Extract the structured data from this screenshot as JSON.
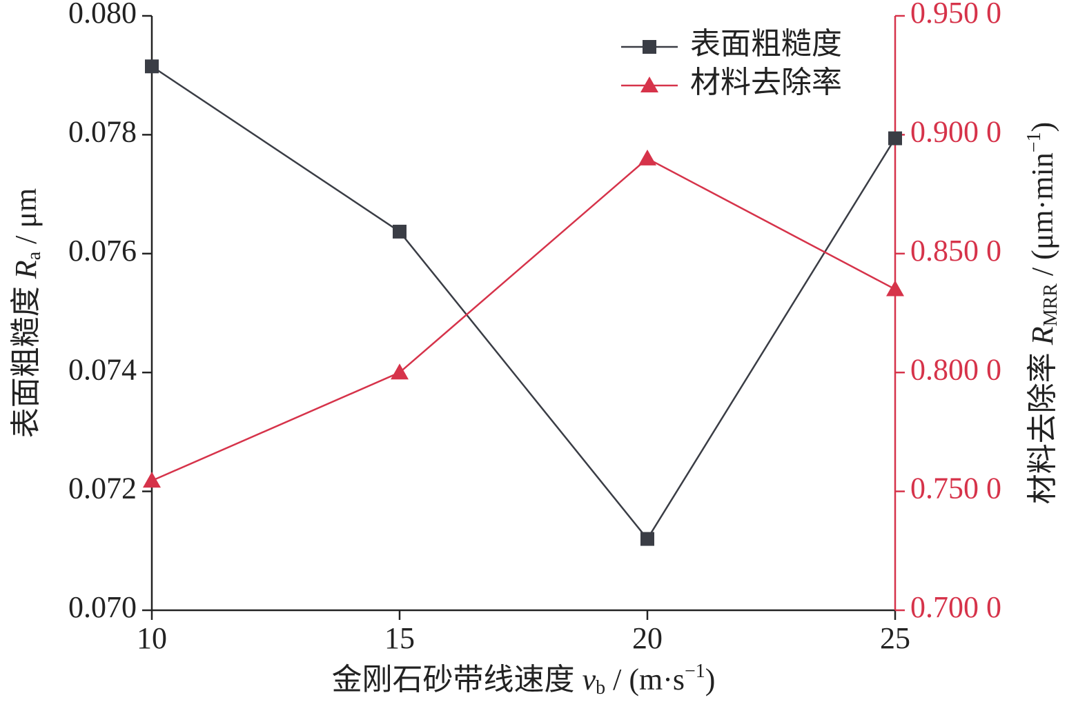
{
  "chart_data": {
    "type": "line",
    "x": [
      10,
      15,
      20,
      25
    ],
    "xlim": [
      10,
      25
    ],
    "xticks": [
      10,
      15,
      20,
      25
    ],
    "ylim": [
      0.07,
      0.08
    ],
    "yticks": [
      {
        "value": 0.07,
        "label": "0.070"
      },
      {
        "value": 0.072,
        "label": "0.072"
      },
      {
        "value": 0.074,
        "label": "0.074"
      },
      {
        "value": 0.076,
        "label": "0.076"
      },
      {
        "value": 0.078,
        "label": "0.078"
      },
      {
        "value": 0.08,
        "label": "0.080"
      }
    ],
    "y2lim": [
      0.7,
      0.95
    ],
    "y2ticks": [
      {
        "value": 0.7,
        "label": "0.700 0"
      },
      {
        "value": 0.75,
        "label": "0.750 0"
      },
      {
        "value": 0.8,
        "label": "0.800 0"
      },
      {
        "value": 0.85,
        "label": "0.850 0"
      },
      {
        "value": 0.9,
        "label": "0.900 0"
      },
      {
        "value": 0.95,
        "label": "0.950 0"
      }
    ],
    "xlabel": [
      "金刚石砂带线速度 ",
      "v",
      "b",
      " / (m·s",
      "−1",
      ")"
    ],
    "ylabel": [
      "表面粗糙度 ",
      "R",
      "a",
      " / μm"
    ],
    "y2label": [
      "材料去除率 ",
      "R",
      "MRR",
      " / (μm·min",
      "−1",
      ")"
    ],
    "legend": "upper right",
    "y2color": "#d6334a",
    "series": [
      {
        "name": "表面粗糙度",
        "color": "#3a3d45",
        "marker": "square",
        "values": [
          0.07915,
          0.07637,
          0.0712,
          0.07794
        ]
      },
      {
        "name": "材料去除率",
        "color": "#d6334a",
        "marker": "triangle",
        "axis": "y2",
        "values": [
          0.7545,
          0.8,
          0.89,
          0.835
        ]
      }
    ]
  }
}
